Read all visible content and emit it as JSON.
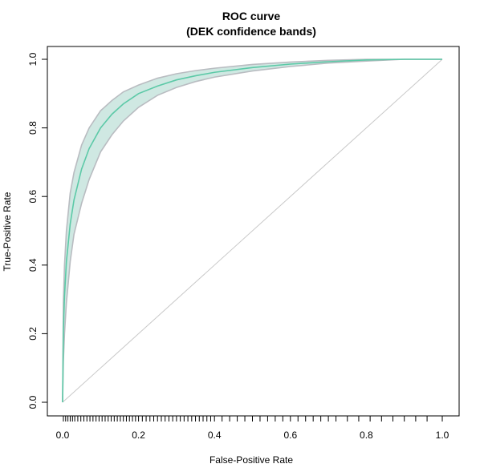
{
  "chart_data": {
    "type": "line",
    "title": "ROC curve",
    "subtitle": "(DEK confidence bands)",
    "xlabel": "False-Positive Rate",
    "ylabel": "True-Positive Rate",
    "xlim": [
      0,
      1
    ],
    "ylim": [
      0,
      1
    ],
    "x_ticks": [
      "0.0",
      "0.2",
      "0.4",
      "0.6",
      "0.8",
      "1.0"
    ],
    "y_ticks": [
      "0.0",
      "0.2",
      "0.4",
      "0.6",
      "0.8",
      "1.0"
    ],
    "grid": false,
    "legend": "none",
    "rug_x": [
      0.002,
      0.008,
      0.014,
      0.02,
      0.026,
      0.032,
      0.04,
      0.048,
      0.056,
      0.064,
      0.072,
      0.08,
      0.088,
      0.096,
      0.104,
      0.112,
      0.12,
      0.128,
      0.136,
      0.144,
      0.152,
      0.16,
      0.168,
      0.176,
      0.184,
      0.192,
      0.2,
      0.21,
      0.22,
      0.23,
      0.24,
      0.25,
      0.26,
      0.27,
      0.28,
      0.29,
      0.3,
      0.31,
      0.32,
      0.33,
      0.34,
      0.35,
      0.36,
      0.37,
      0.38,
      0.39,
      0.4,
      0.42,
      0.44,
      0.46,
      0.48,
      0.5,
      0.52,
      0.54,
      0.56,
      0.58,
      0.6,
      0.62,
      0.64,
      0.66,
      0.68,
      0.7,
      0.72,
      0.75,
      0.78,
      0.81,
      0.84,
      0.87,
      0.9,
      0.93,
      0.96,
      1.0
    ],
    "series": [
      {
        "role": "roc",
        "x": [
          0.0,
          0.002,
          0.005,
          0.01,
          0.02,
          0.03,
          0.05,
          0.07,
          0.1,
          0.13,
          0.16,
          0.2,
          0.25,
          0.3,
          0.35,
          0.4,
          0.5,
          0.6,
          0.7,
          0.8,
          0.9,
          1.0
        ],
        "y": [
          0.0,
          0.21,
          0.31,
          0.41,
          0.52,
          0.59,
          0.68,
          0.74,
          0.8,
          0.84,
          0.87,
          0.9,
          0.922,
          0.94,
          0.952,
          0.962,
          0.976,
          0.986,
          0.993,
          0.998,
          1.0,
          1.0
        ]
      },
      {
        "role": "upper-band",
        "x": [
          0.0,
          0.002,
          0.005,
          0.01,
          0.02,
          0.03,
          0.05,
          0.07,
          0.1,
          0.13,
          0.16,
          0.2,
          0.25,
          0.3,
          0.35,
          0.4,
          0.5,
          0.6,
          0.7,
          0.8,
          0.9,
          1.0
        ],
        "y": [
          0.0,
          0.29,
          0.4,
          0.5,
          0.61,
          0.67,
          0.75,
          0.8,
          0.85,
          0.88,
          0.905,
          0.925,
          0.945,
          0.958,
          0.967,
          0.974,
          0.985,
          0.992,
          0.997,
          1.0,
          1.0,
          1.0
        ]
      },
      {
        "role": "lower-band",
        "x": [
          0.0,
          0.002,
          0.005,
          0.01,
          0.02,
          0.03,
          0.05,
          0.07,
          0.1,
          0.13,
          0.16,
          0.2,
          0.25,
          0.3,
          0.35,
          0.4,
          0.5,
          0.6,
          0.7,
          0.8,
          0.9,
          1.0
        ],
        "y": [
          0.0,
          0.12,
          0.2,
          0.29,
          0.41,
          0.49,
          0.58,
          0.65,
          0.73,
          0.78,
          0.82,
          0.86,
          0.895,
          0.918,
          0.935,
          0.948,
          0.966,
          0.979,
          0.989,
          0.995,
          1.0,
          1.0
        ]
      },
      {
        "role": "reference-diagonal",
        "x": [
          0,
          1
        ],
        "y": [
          0,
          1
        ]
      }
    ],
    "colors": {
      "roc": "#5cc9a7",
      "band_fill": "#cfe8e2",
      "band_edge": "#b9bcc1",
      "diagonal": "#c8c8c8",
      "frame": "#000000"
    }
  }
}
